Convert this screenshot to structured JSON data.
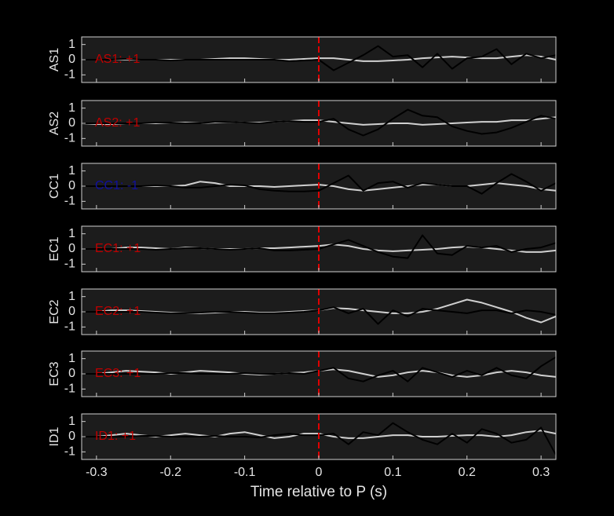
{
  "chart_data": [
    {
      "type": "line",
      "ylabel": "AS1",
      "annotation": "AS1: +1",
      "annotation_color": "#c00000",
      "vline": 0,
      "vline_color": "#e00000",
      "x": [
        -0.32,
        -0.3,
        -0.28,
        -0.26,
        -0.24,
        -0.22,
        -0.2,
        -0.18,
        -0.16,
        -0.14,
        -0.12,
        -0.1,
        -0.08,
        -0.06,
        -0.04,
        -0.02,
        0,
        0.02,
        0.04,
        0.06,
        0.08,
        0.1,
        0.12,
        0.14,
        0.16,
        0.18,
        0.2,
        0.22,
        0.24,
        0.26,
        0.28,
        0.3,
        0.32
      ],
      "series": [
        {
          "color": "#d0d0d0",
          "values": [
            0,
            0,
            0,
            0,
            0,
            0,
            0,
            0,
            0,
            0.05,
            0.1,
            0.1,
            0.05,
            0,
            0,
            0.05,
            0.1,
            0.1,
            0,
            -0.1,
            -0.1,
            -0.05,
            0,
            0.1,
            0.15,
            0.2,
            0.15,
            0.1,
            0.1,
            0.2,
            0.3,
            0.2,
            0
          ]
        },
        {
          "color": "#000000",
          "values": [
            0,
            0,
            0,
            0.05,
            0,
            0,
            -0.05,
            0,
            0,
            0,
            0,
            0,
            0,
            0,
            -0.1,
            -0.05,
            0,
            -0.7,
            -0.2,
            0.3,
            0.9,
            0.2,
            0.3,
            -0.5,
            0.4,
            -0.6,
            0.1,
            0.2,
            0.7,
            -0.3,
            0.4,
            0.1,
            0.3
          ]
        }
      ],
      "xlim": [
        -0.32,
        0.32
      ],
      "ylim": [
        -1.5,
        1.5
      ],
      "yticks": [
        -1,
        0,
        1
      ]
    },
    {
      "type": "line",
      "ylabel": "AS2",
      "annotation": "AS2: +1",
      "annotation_color": "#c00000",
      "vline": 0,
      "vline_color": "#e00000",
      "x": [
        -0.32,
        -0.3,
        -0.28,
        -0.26,
        -0.24,
        -0.22,
        -0.2,
        -0.18,
        -0.16,
        -0.14,
        -0.12,
        -0.1,
        -0.08,
        -0.06,
        -0.04,
        -0.02,
        0,
        0.02,
        0.04,
        0.06,
        0.08,
        0.1,
        0.12,
        0.14,
        0.16,
        0.18,
        0.2,
        0.22,
        0.24,
        0.26,
        0.28,
        0.3,
        0.32
      ],
      "series": [
        {
          "color": "#d0d0d0",
          "values": [
            0,
            -0.05,
            -0.05,
            0,
            0,
            0,
            0.05,
            0.05,
            0,
            0.05,
            0.1,
            0.05,
            0.05,
            0.1,
            0.15,
            0.2,
            0.2,
            0.1,
            0,
            -0.1,
            -0.05,
            0,
            0,
            -0.1,
            -0.05,
            0,
            0.05,
            0.1,
            0.1,
            0.2,
            0.2,
            0.3,
            0.4
          ]
        },
        {
          "color": "#000000",
          "values": [
            0,
            0,
            0,
            0,
            0,
            0.05,
            0.05,
            0,
            0,
            0.1,
            0.1,
            0.05,
            0,
            0.1,
            0.15,
            0.1,
            0.1,
            0.3,
            -0.4,
            -0.8,
            -0.4,
            0.3,
            0.9,
            0.5,
            0.4,
            -0.2,
            -0.5,
            -0.7,
            -0.6,
            -0.3,
            0.1,
            0.5,
            0.3
          ]
        }
      ],
      "xlim": [
        -0.32,
        0.32
      ],
      "ylim": [
        -1.5,
        1.5
      ],
      "yticks": [
        -1,
        0,
        1
      ]
    },
    {
      "type": "line",
      "ylabel": "CC1",
      "annotation": "CC1: -1",
      "annotation_color": "#1010a0",
      "vline": 0,
      "vline_color": "#e00000",
      "x": [
        -0.32,
        -0.3,
        -0.28,
        -0.26,
        -0.24,
        -0.22,
        -0.2,
        -0.18,
        -0.16,
        -0.14,
        -0.12,
        -0.1,
        -0.08,
        -0.06,
        -0.04,
        -0.02,
        0,
        0.02,
        0.04,
        0.06,
        0.08,
        0.1,
        0.12,
        0.14,
        0.16,
        0.18,
        0.2,
        0.22,
        0.24,
        0.26,
        0.28,
        0.3,
        0.32
      ],
      "series": [
        {
          "color": "#d0d0d0",
          "values": [
            0,
            0,
            0,
            0,
            0,
            0,
            0,
            0.05,
            0.3,
            0.2,
            0,
            0,
            0,
            -0.05,
            0,
            0.05,
            0.1,
            0,
            -0.2,
            -0.3,
            -0.2,
            -0.1,
            0,
            0.1,
            0.1,
            0,
            0,
            0.1,
            0.2,
            0.1,
            0,
            -0.2,
            -0.3
          ]
        },
        {
          "color": "#000000",
          "values": [
            0,
            0,
            0,
            0,
            0,
            0.05,
            0,
            -0.1,
            -0.1,
            0,
            0.1,
            0.05,
            -0.2,
            -0.3,
            -0.35,
            -0.35,
            -0.3,
            0.2,
            0.7,
            -0.3,
            0.2,
            0.3,
            -0.1,
            0.2,
            0.1,
            0,
            0,
            -0.5,
            0.2,
            0.8,
            0.3,
            -0.3,
            0.2
          ]
        }
      ],
      "xlim": [
        -0.32,
        0.32
      ],
      "ylim": [
        -1.5,
        1.5
      ],
      "yticks": [
        -1,
        0,
        1
      ]
    },
    {
      "type": "line",
      "ylabel": "EC1",
      "annotation": "EC1: +1",
      "annotation_color": "#c00000",
      "vline": 0,
      "vline_color": "#e00000",
      "x": [
        -0.32,
        -0.3,
        -0.28,
        -0.26,
        -0.24,
        -0.22,
        -0.2,
        -0.18,
        -0.16,
        -0.14,
        -0.12,
        -0.1,
        -0.08,
        -0.06,
        -0.04,
        -0.02,
        0,
        0.02,
        0.04,
        0.06,
        0.08,
        0.1,
        0.12,
        0.14,
        0.16,
        0.18,
        0.2,
        0.22,
        0.24,
        0.26,
        0.28,
        0.3,
        0.32
      ],
      "series": [
        {
          "color": "#d0d0d0",
          "values": [
            0,
            0,
            0,
            0.1,
            0.1,
            0.05,
            0,
            0.1,
            0.05,
            0,
            0,
            0,
            0.05,
            0.05,
            0.1,
            0.15,
            0.2,
            0.3,
            0.2,
            0,
            -0.1,
            -0.15,
            -0.1,
            -0.05,
            0,
            0.1,
            0.15,
            0.1,
            0,
            -0.1,
            -0.2,
            -0.2,
            -0.1
          ]
        },
        {
          "color": "#000000",
          "values": [
            0,
            0,
            0,
            0,
            0,
            -0.05,
            0,
            0.05,
            0.05,
            0,
            -0.05,
            0,
            0.05,
            -0.1,
            -0.1,
            -0.05,
            0,
            0.3,
            0.6,
            0.2,
            -0.2,
            -0.5,
            -0.6,
            0.9,
            -0.3,
            -0.4,
            0.2,
            0.1,
            0.2,
            -0.2,
            0,
            0.1,
            0.4
          ]
        }
      ],
      "xlim": [
        -0.32,
        0.32
      ],
      "ylim": [
        -1.5,
        1.5
      ],
      "yticks": [
        -1,
        0,
        1
      ]
    },
    {
      "type": "line",
      "ylabel": "EC2",
      "annotation": "EC2: +1",
      "annotation_color": "#c00000",
      "vline": 0,
      "vline_color": "#e00000",
      "x": [
        -0.32,
        -0.3,
        -0.28,
        -0.26,
        -0.24,
        -0.22,
        -0.2,
        -0.18,
        -0.16,
        -0.14,
        -0.12,
        -0.1,
        -0.08,
        -0.06,
        -0.04,
        -0.02,
        0,
        0.02,
        0.04,
        0.06,
        0.08,
        0.1,
        0.12,
        0.14,
        0.16,
        0.18,
        0.2,
        0.22,
        0.24,
        0.26,
        0.28,
        0.3,
        0.32
      ],
      "series": [
        {
          "color": "#d0d0d0",
          "values": [
            0,
            0,
            0.1,
            0.1,
            0.05,
            0,
            -0.05,
            -0.1,
            -0.1,
            -0.05,
            0,
            0,
            -0.05,
            -0.05,
            0,
            0.05,
            0.1,
            0.25,
            0.2,
            0.1,
            0,
            -0.1,
            -0.1,
            0,
            0.2,
            0.5,
            0.8,
            0.6,
            0.3,
            0,
            -0.4,
            -0.7,
            -0.3
          ]
        },
        {
          "color": "#000000",
          "values": [
            0,
            0,
            0,
            0,
            0,
            -0.05,
            -0.1,
            -0.1,
            -0.05,
            0,
            0,
            -0.05,
            -0.1,
            -0.1,
            -0.05,
            0,
            0.1,
            0.3,
            -0.1,
            0.2,
            -0.8,
            0.1,
            -0.3,
            0.2,
            0.1,
            0,
            -0.1,
            0.1,
            0.1,
            -0.1,
            0.1,
            0,
            -0.2
          ]
        }
      ],
      "xlim": [
        -0.32,
        0.32
      ],
      "ylim": [
        -1.5,
        1.5
      ],
      "yticks": [
        -1,
        0,
        1
      ]
    },
    {
      "type": "line",
      "ylabel": "EC3",
      "annotation": "EC3: +1",
      "annotation_color": "#c00000",
      "vline": 0,
      "vline_color": "#e00000",
      "x": [
        -0.32,
        -0.3,
        -0.28,
        -0.26,
        -0.24,
        -0.22,
        -0.2,
        -0.18,
        -0.16,
        -0.14,
        -0.12,
        -0.1,
        -0.08,
        -0.06,
        -0.04,
        -0.02,
        0,
        0.02,
        0.04,
        0.06,
        0.08,
        0.1,
        0.12,
        0.14,
        0.16,
        0.18,
        0.2,
        0.22,
        0.24,
        0.26,
        0.28,
        0.3,
        0.32
      ],
      "series": [
        {
          "color": "#d0d0d0",
          "values": [
            0,
            0,
            0.1,
            0.2,
            0.15,
            0.1,
            0,
            0.1,
            0.2,
            0.15,
            0.1,
            0,
            -0.05,
            0,
            0.05,
            0.1,
            0.2,
            0.3,
            0.2,
            0,
            -0.2,
            -0.1,
            0.1,
            0.2,
            0.1,
            -0.1,
            -0.2,
            -0.1,
            0.1,
            0.2,
            0.1,
            -0.1,
            -0.2
          ]
        },
        {
          "color": "#000000",
          "values": [
            0,
            0,
            0,
            0,
            0,
            0,
            0.05,
            0.05,
            0,
            0,
            0,
            0.05,
            0,
            0,
            0.05,
            0,
            0.2,
            0.4,
            -0.3,
            -0.5,
            -0.1,
            0.2,
            -0.5,
            0.4,
            0.1,
            -0.2,
            0.2,
            -0.1,
            0.4,
            -0.1,
            -0.3,
            0.5,
            1.1
          ]
        }
      ],
      "xlim": [
        -0.32,
        0.32
      ],
      "ylim": [
        -1.5,
        1.5
      ],
      "yticks": [
        -1,
        0,
        1
      ]
    },
    {
      "type": "line",
      "ylabel": "ID1",
      "annotation": "ID1: +1",
      "annotation_color": "#c00000",
      "vline": 0,
      "vline_color": "#e00000",
      "x": [
        -0.32,
        -0.3,
        -0.28,
        -0.26,
        -0.24,
        -0.22,
        -0.2,
        -0.18,
        -0.16,
        -0.14,
        -0.12,
        -0.1,
        -0.08,
        -0.06,
        -0.04,
        -0.02,
        0,
        0.02,
        0.04,
        0.06,
        0.08,
        0.1,
        0.12,
        0.14,
        0.16,
        0.18,
        0.2,
        0.22,
        0.24,
        0.26,
        0.28,
        0.3,
        0.32
      ],
      "series": [
        {
          "color": "#d0d0d0",
          "values": [
            0,
            0,
            0.1,
            0.2,
            0.1,
            0,
            0.1,
            0.2,
            0.1,
            0,
            0.2,
            0.3,
            0.1,
            -0.1,
            0,
            0.2,
            0.2,
            0,
            -0.1,
            -0.1,
            0,
            0.1,
            0.1,
            0,
            0,
            0.05,
            0.1,
            0.1,
            0,
            0.1,
            0.3,
            0.4,
            0.2
          ]
        },
        {
          "color": "#000000",
          "values": [
            0,
            0,
            0,
            0,
            0.05,
            0.05,
            0,
            0,
            0,
            0.05,
            0,
            0,
            -0.05,
            0.1,
            0.2,
            0.1,
            0.1,
            0.2,
            -0.5,
            0.3,
            0.1,
            0.9,
            0.3,
            -0.2,
            -0.5,
            0.2,
            -0.4,
            0.5,
            0.2,
            -0.4,
            -0.2,
            0.6,
            -1.2
          ]
        }
      ],
      "xlim": [
        -0.32,
        0.32
      ],
      "ylim": [
        -1.5,
        1.5
      ],
      "yticks": [
        -1,
        0,
        1
      ],
      "xticks": [
        -0.3,
        -0.2,
        -0.1,
        0,
        0.1,
        0.2,
        0.3
      ],
      "xlabel": "Time relative to P (s)"
    }
  ]
}
